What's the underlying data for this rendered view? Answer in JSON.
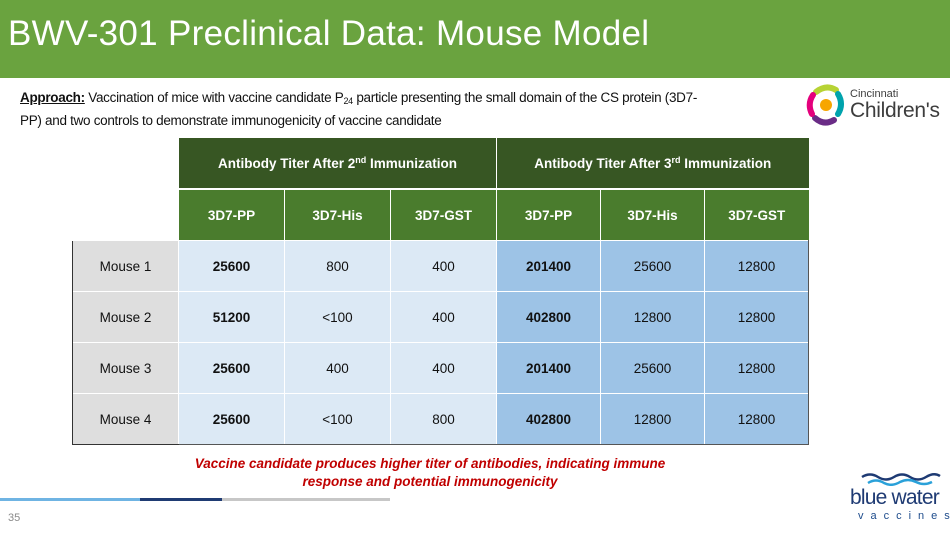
{
  "slide": {
    "title": "BWV-301 Preclinical Data: Mouse Model",
    "page_number": "35"
  },
  "approach": {
    "label": "Approach:",
    "text_1": " Vaccination of mice with vaccine candidate P",
    "subscript": "24",
    "text_2": " particle presenting the small domain of the CS protein (3D7- PP) and two controls to demonstrate immunogenicity of vaccine candidate"
  },
  "logos": {
    "cincinnati": {
      "top": "Cincinnati",
      "main": "Children's"
    },
    "blue_water": {
      "name": "blue water",
      "tagline": "vaccines"
    }
  },
  "table": {
    "group_headers": [
      {
        "text": "Antibody Titer After 2",
        "ordinal": "nd",
        "suffix": " Immunization"
      },
      {
        "text": "Antibody Titer After 3",
        "ordinal": "rd",
        "suffix": " Immunization"
      }
    ],
    "columns": [
      "3D7-PP",
      "3D7-His",
      "3D7-GST",
      "3D7-PP",
      "3D7-His",
      "3D7-GST"
    ],
    "rows": [
      {
        "label": "Mouse 1",
        "values": [
          "25600",
          "800",
          "400",
          "201400",
          "25600",
          "12800"
        ]
      },
      {
        "label": "Mouse 2",
        "values": [
          "51200",
          "<100",
          "400",
          "402800",
          "12800",
          "12800"
        ]
      },
      {
        "label": "Mouse 3",
        "values": [
          "25600",
          "400",
          "400",
          "201400",
          "25600",
          "12800"
        ]
      },
      {
        "label": "Mouse 4",
        "values": [
          "25600",
          "<100",
          "800",
          "402800",
          "12800",
          "12800"
        ]
      }
    ]
  },
  "conclusion": {
    "line_1": "Vaccine candidate produces higher titer of antibodies, indicating immune",
    "line_2": "response and potential immunogenicity"
  },
  "colors": {
    "title_bar": "#6aa33f",
    "header_dark": "#375623",
    "header_mid": "#4a7c2d",
    "cell_light_blue": "#dce9f5",
    "cell_blue": "#9dc3e6",
    "conclusion_red": "#c00000"
  }
}
